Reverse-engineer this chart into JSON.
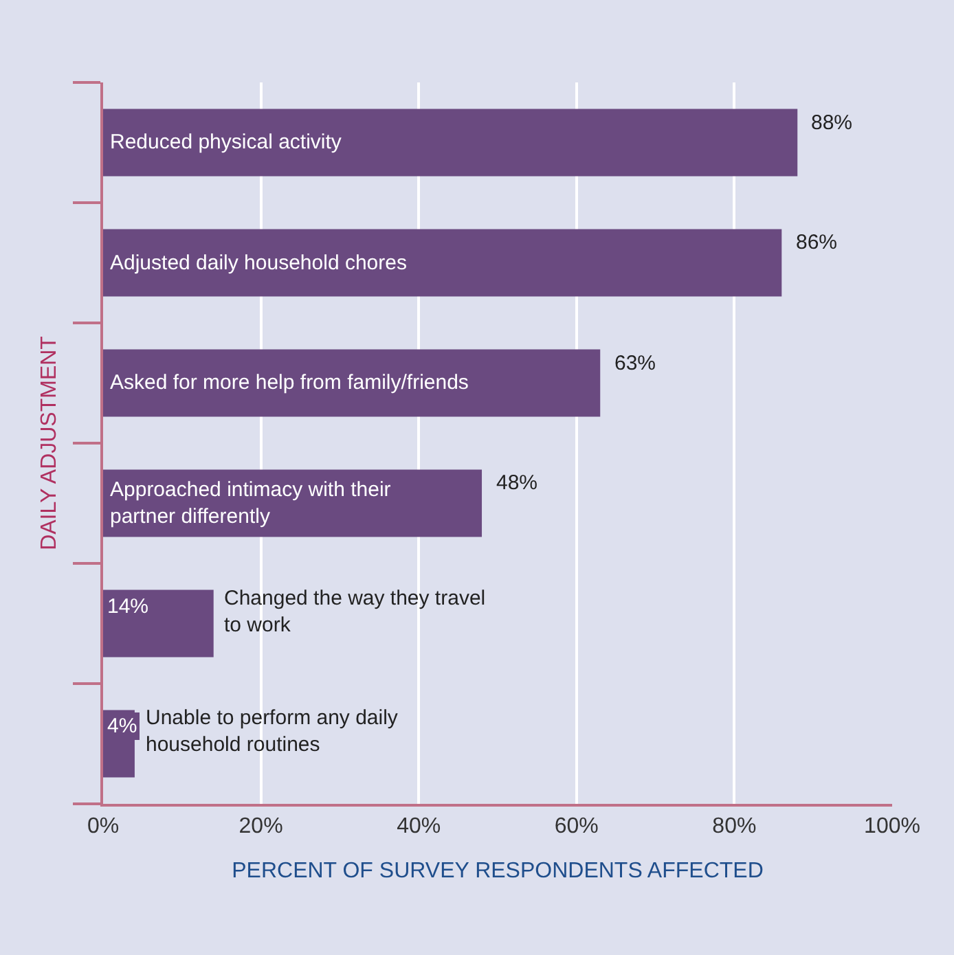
{
  "chart_data": {
    "type": "bar",
    "orientation": "horizontal",
    "categories": [
      "Reduced physical activity",
      "Adjusted daily household chores",
      "Asked for more help from family/friends",
      "Approached intimacy with their\npartner differently",
      "Changed the way they travel\nto work",
      "Unable to perform any daily\nhousehold routines"
    ],
    "values": [
      88,
      86,
      63,
      48,
      14,
      4
    ],
    "value_labels": [
      "88%",
      "86%",
      "63%",
      "48%",
      "14%",
      "4%"
    ],
    "color": "#6a4a80",
    "xlim": [
      0,
      100
    ],
    "xticks": [
      {
        "value": 0,
        "label": "0%"
      },
      {
        "value": 20,
        "label": "20%"
      },
      {
        "value": 40,
        "label": "40%"
      },
      {
        "value": 60,
        "label": "60%"
      },
      {
        "value": 80,
        "label": "80%"
      },
      {
        "value": 100,
        "label": "100%"
      }
    ],
    "xlabel": "PERCENT OF SURVEY RESPONDENTS AFFECTED",
    "ylabel": "DAILY ADJUSTMENT",
    "grid": "x",
    "tick_labels": "x",
    "legend": false
  }
}
